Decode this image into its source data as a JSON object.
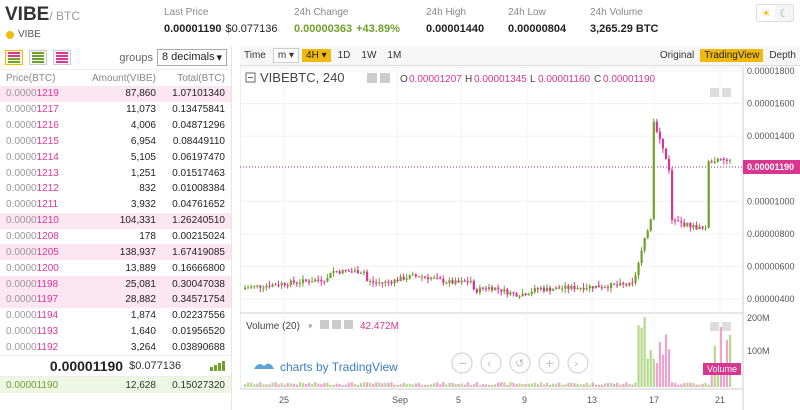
{
  "header": {
    "base": "VIBE",
    "quote": "/ BTC",
    "name": "VIBE",
    "stats": [
      {
        "label": "Last Price",
        "value": "0.00001190",
        "sub": "$0.077136"
      },
      {
        "label": "24h Change",
        "value": "0.00000363",
        "sub": "+43.89%"
      },
      {
        "label": "24h High",
        "value": "0.00001440"
      },
      {
        "label": "24h Low",
        "value": "0.00000804"
      },
      {
        "label": "24h Volume",
        "value": "3,265.29 BTC"
      }
    ]
  },
  "orderbook": {
    "groups_label": "groups",
    "groups_value": "8 decimals",
    "columns": [
      "Price(BTC)",
      "Amount(VIBE)",
      "Total(BTC)"
    ],
    "asks": [
      {
        "p1": "0.0000",
        "p2": "1219",
        "amount": "87,860",
        "total": "1.07101340",
        "hl": true
      },
      {
        "p1": "0.0000",
        "p2": "1217",
        "amount": "11,073",
        "total": "0.13475841",
        "hl": false
      },
      {
        "p1": "0.0000",
        "p2": "1216",
        "amount": "4,006",
        "total": "0.04871296",
        "hl": false
      },
      {
        "p1": "0.0000",
        "p2": "1215",
        "amount": "6,954",
        "total": "0.08449110",
        "hl": false
      },
      {
        "p1": "0.0000",
        "p2": "1214",
        "amount": "5,105",
        "total": "0.06197470",
        "hl": false
      },
      {
        "p1": "0.0000",
        "p2": "1213",
        "amount": "1,251",
        "total": "0.01517463",
        "hl": false
      },
      {
        "p1": "0.0000",
        "p2": "1212",
        "amount": "832",
        "total": "0.01008384",
        "hl": false
      },
      {
        "p1": "0.0000",
        "p2": "1211",
        "amount": "3,932",
        "total": "0.04761652",
        "hl": false
      },
      {
        "p1": "0.0000",
        "p2": "1210",
        "amount": "104,331",
        "total": "1.26240510",
        "hl": true
      },
      {
        "p1": "0.0000",
        "p2": "1208",
        "amount": "178",
        "total": "0.00215024",
        "hl": false
      },
      {
        "p1": "0.0000",
        "p2": "1205",
        "amount": "138,937",
        "total": "1.67419085",
        "hl": true
      },
      {
        "p1": "0.0000",
        "p2": "1200",
        "amount": "13,889",
        "total": "0.16666800",
        "hl": false
      },
      {
        "p1": "0.0000",
        "p2": "1198",
        "amount": "25,081",
        "total": "0.30047038",
        "hl": true
      },
      {
        "p1": "0.0000",
        "p2": "1197",
        "amount": "28,882",
        "total": "0.34571754",
        "hl": true
      },
      {
        "p1": "0.0000",
        "p2": "1194",
        "amount": "1,874",
        "total": "0.02237556",
        "hl": false
      },
      {
        "p1": "0.0000",
        "p2": "1193",
        "amount": "1,640",
        "total": "0.01956520",
        "hl": false
      },
      {
        "p1": "0.0000",
        "p2": "1192",
        "amount": "3,264",
        "total": "0.03890688",
        "hl": false
      }
    ],
    "last_price": "0.00001190",
    "last_price_usd": "$0.077136",
    "bid": {
      "price": "0.00001190",
      "amount": "12,628",
      "total": "0.15027320"
    }
  },
  "chart": {
    "toolbar": {
      "time": "Time",
      "m": "m",
      "4h": "4H",
      "1d": "1D",
      "1w": "1W",
      "1m": "1M",
      "original": "Original",
      "tradingview": "TradingView",
      "depth": "Depth"
    },
    "legend": {
      "symbol": "VIBEBTC, 240",
      "o_label": "O",
      "o": "0.00001207",
      "h_label": "H",
      "h": "0.00001345",
      "l_label": "L",
      "l": "0.00001160",
      "c_label": "C",
      "c": "0.00001190"
    },
    "price_ticks": [
      "0.00001800",
      "0.00001600",
      "0.00001400",
      "0.00001000",
      "0.00000800",
      "0.00000600",
      "0.00000400"
    ],
    "current_price_tag": "0.00001190",
    "volume_legend": {
      "label": "Volume (20)",
      "value": "42.472M"
    },
    "volume_ticks": [
      "200M",
      "100M"
    ],
    "volume_tag": "Volume",
    "x_ticks": [
      "25",
      "Sep",
      "5",
      "9",
      "13",
      "17",
      "21"
    ],
    "watermark": "charts by TradingView",
    "colors": {
      "up": "#6fa12b",
      "down": "#d9368f",
      "accent": "#f0b90b"
    }
  },
  "chart_data": {
    "type": "candlestick",
    "price_axis_ticks": [
      4e-06,
      6e-06,
      8e-06,
      1e-05,
      1.4e-05,
      1.6e-05,
      1.8e-05
    ],
    "last_close": 1.19e-05,
    "volume_axis_ticks": [
      "100M",
      "200M"
    ]
  }
}
